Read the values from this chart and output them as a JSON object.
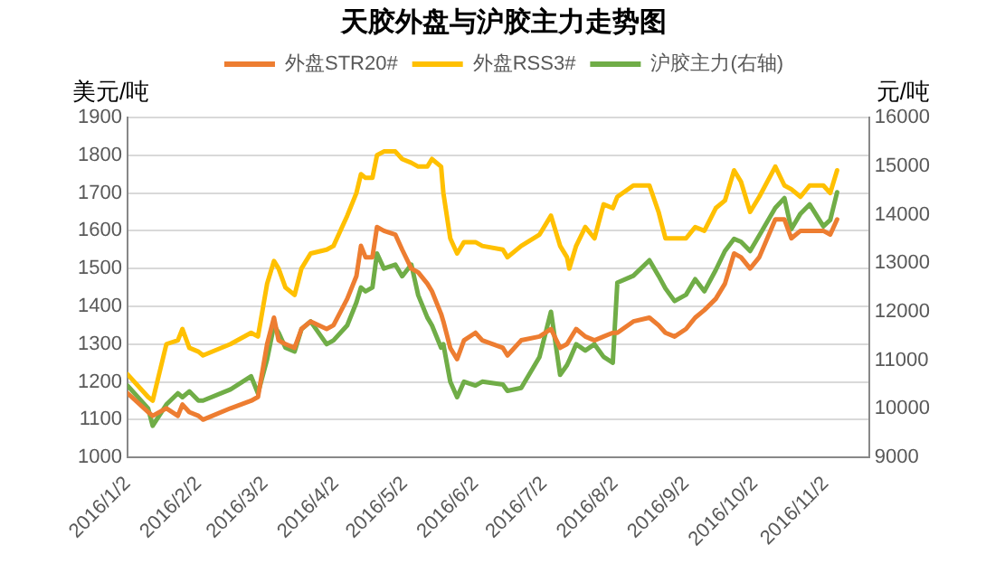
{
  "chart_data": {
    "type": "line",
    "title": "天胶外盘与沪胶主力走势图",
    "ylabel": "美元/吨",
    "y2label": "元/吨",
    "x": [
      "2016-01-02",
      "2016-01-11",
      "2016-01-13",
      "2016-01-19",
      "2016-01-24",
      "2016-01-26",
      "2016-01-29",
      "2016-02-02",
      "2016-02-04",
      "2016-02-16",
      "2016-02-25",
      "2016-02-28",
      "2016-03-03",
      "2016-03-06",
      "2016-03-08",
      "2016-03-11",
      "2016-03-15",
      "2016-03-18",
      "2016-03-22",
      "2016-03-29",
      "2016-04-01",
      "2016-04-07",
      "2016-04-11",
      "2016-04-13",
      "2016-04-15",
      "2016-04-18",
      "2016-04-20",
      "2016-04-23",
      "2016-04-28",
      "2016-05-01",
      "2016-05-05",
      "2016-05-08",
      "2016-05-12",
      "2016-05-14",
      "2016-05-18",
      "2016-05-19",
      "2016-05-22",
      "2016-05-25",
      "2016-05-28",
      "2016-06-02",
      "2016-06-05",
      "2016-06-14",
      "2016-06-16",
      "2016-06-22",
      "2016-06-30",
      "2016-07-05",
      "2016-07-09",
      "2016-07-12",
      "2016-07-13",
      "2016-07-16",
      "2016-07-20",
      "2016-07-24",
      "2016-07-28",
      "2016-08-01",
      "2016-08-03",
      "2016-08-10",
      "2016-08-17",
      "2016-08-21",
      "2016-08-24",
      "2016-08-28",
      "2016-09-02",
      "2016-09-06",
      "2016-09-10",
      "2016-09-15",
      "2016-09-19",
      "2016-09-23",
      "2016-09-26",
      "2016-09-30",
      "2016-10-04",
      "2016-10-11",
      "2016-10-15",
      "2016-10-18",
      "2016-10-22",
      "2016-10-26",
      "2016-11-01",
      "2016-11-04",
      "2016-11-07"
    ],
    "series": [
      {
        "name": "外盘STR20#",
        "color": "#ed7d31",
        "values": [
          1170,
          1120,
          1110,
          1130,
          1110,
          1140,
          1120,
          1110,
          1100,
          1130,
          1150,
          1160,
          1300,
          1370,
          1310,
          1300,
          1290,
          1340,
          1360,
          1340,
          1350,
          1420,
          1480,
          1560,
          1530,
          1530,
          1610,
          1600,
          1590,
          1550,
          1500,
          1490,
          1460,
          1440,
          1380,
          1360,
          1290,
          1260,
          1310,
          1330,
          1310,
          1290,
          1270,
          1310,
          1320,
          1340,
          1290,
          1300,
          1310,
          1340,
          1320,
          1310,
          1320,
          1330,
          1330,
          1360,
          1370,
          1350,
          1330,
          1320,
          1340,
          1370,
          1390,
          1420,
          1460,
          1540,
          1530,
          1500,
          1530,
          1630,
          1630,
          1580,
          1600,
          1600,
          1600,
          1590,
          1630
        ]
      },
      {
        "name": "外盘RSS3#",
        "color": "#ffc000",
        "values": [
          1220,
          1160,
          1150,
          1300,
          1310,
          1340,
          1290,
          1280,
          1270,
          1300,
          1330,
          1320,
          1460,
          1520,
          1500,
          1450,
          1430,
          1500,
          1540,
          1550,
          1560,
          1640,
          1700,
          1750,
          1740,
          1740,
          1800,
          1810,
          1810,
          1790,
          1780,
          1770,
          1770,
          1790,
          1770,
          1700,
          1580,
          1540,
          1570,
          1570,
          1560,
          1550,
          1530,
          1560,
          1590,
          1640,
          1560,
          1530,
          1500,
          1560,
          1610,
          1580,
          1670,
          1660,
          1690,
          1720,
          1720,
          1650,
          1580,
          1580,
          1580,
          1610,
          1600,
          1660,
          1680,
          1760,
          1730,
          1650,
          1690,
          1770,
          1720,
          1710,
          1690,
          1720,
          1720,
          1700,
          1760
        ]
      },
      {
        "name": "沪胶主力(右轴)",
        "color": "#70ad47",
        "axis": "y2",
        "values": [
          10480,
          10010,
          9650,
          10090,
          10320,
          10240,
          10360,
          10170,
          10170,
          10400,
          10670,
          10320,
          11020,
          11720,
          11570,
          11260,
          11180,
          11640,
          11800,
          11330,
          11410,
          11720,
          12190,
          12500,
          12420,
          12500,
          13200,
          12890,
          12970,
          12730,
          12970,
          12340,
          11880,
          11720,
          11260,
          11330,
          10560,
          10240,
          10560,
          10480,
          10560,
          10500,
          10370,
          10430,
          11070,
          12000,
          10700,
          10900,
          11000,
          11330,
          11200,
          11330,
          11070,
          10950,
          12600,
          12740,
          13060,
          12740,
          12480,
          12220,
          12350,
          12670,
          12420,
          12860,
          13250,
          13500,
          13440,
          13250,
          13570,
          14140,
          14340,
          13700,
          14020,
          14210,
          13760,
          13890,
          14460
        ]
      }
    ],
    "xlim": [
      "2016-01-02",
      "2016-11-21"
    ],
    "xticks": [
      {
        "value": "2016-01-02",
        "label": "2016/1/2"
      },
      {
        "value": "2016-02-02",
        "label": "2016/2/2"
      },
      {
        "value": "2016-03-02",
        "label": "2016/3/2"
      },
      {
        "value": "2016-04-02",
        "label": "2016/4/2"
      },
      {
        "value": "2016-05-02",
        "label": "2016/5/2"
      },
      {
        "value": "2016-06-02",
        "label": "2016/6/2"
      },
      {
        "value": "2016-07-02",
        "label": "2016/7/2"
      },
      {
        "value": "2016-08-02",
        "label": "2016/8/2"
      },
      {
        "value": "2016-09-02",
        "label": "2016/9/2"
      },
      {
        "value": "2016-10-02",
        "label": "2016/10/2"
      },
      {
        "value": "2016-11-02",
        "label": "2016/11/2"
      }
    ],
    "ylim": [
      1000,
      1900
    ],
    "yticks": [
      1000,
      1100,
      1200,
      1300,
      1400,
      1500,
      1600,
      1700,
      1800,
      1900
    ],
    "y2lim": [
      9000,
      16000
    ],
    "y2ticks": [
      9000,
      10000,
      11000,
      12000,
      13000,
      14000,
      15000,
      16000
    ],
    "grid": "y",
    "legend": "top",
    "marker": "none",
    "line_style": "solid"
  }
}
